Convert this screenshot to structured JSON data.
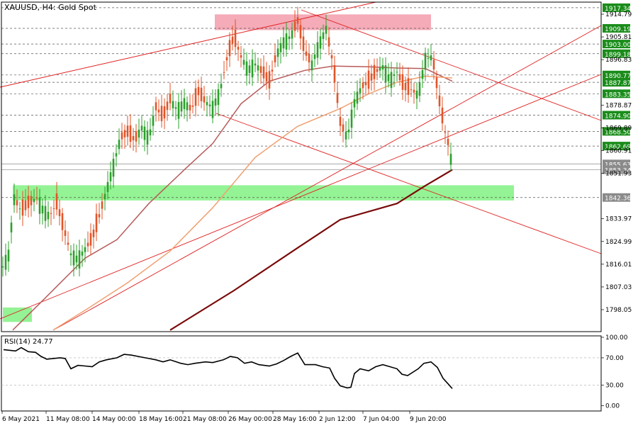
{
  "header": {
    "title": "XAUUSD, H4:  Gold Spot"
  },
  "chart_data": {
    "type": "candlestick",
    "symbol": "XAUUSD",
    "timeframe": "H4",
    "description": "Gold Spot",
    "ylim": [
      1790,
      1920
    ],
    "price_ticks": [
      1914.79,
      1905.81,
      1896.83,
      1878.87,
      1869.89,
      1860.91,
      1851.93,
      1833.97,
      1824.99,
      1816.01,
      1807.03,
      1798.05
    ],
    "level_labels": [
      {
        "price": 1917.34,
        "color": "#1a8c1a"
      },
      {
        "price": 1909.19,
        "color": "#1a8c1a"
      },
      {
        "price": 1903.0,
        "color": "#1a8c1a"
      },
      {
        "price": 1899.18,
        "color": "#1a8c1a"
      },
      {
        "price": 1890.77,
        "color": "#1a8c1a"
      },
      {
        "price": 1887.87,
        "color": "#1a8c1a"
      },
      {
        "price": 1883.35,
        "color": "#1a8c1a"
      },
      {
        "price": 1874.9,
        "color": "#1a8c1a"
      },
      {
        "price": 1868.5,
        "color": "#1a8c1a"
      },
      {
        "price": 1862.69,
        "color": "#1a8c1a"
      },
      {
        "price": 1855.63,
        "color": "#8a8a8a"
      },
      {
        "price": 1853.34,
        "color": "#8a8a8a"
      },
      {
        "price": 1842.36,
        "color": "#8a8a8a"
      }
    ],
    "time_labels": [
      "6 May 2021",
      "11 May 08:00",
      "14 May 00:00",
      "18 May 16:00",
      "21 May 08:00",
      "26 May 00:00",
      "28 May 16:00",
      "2 Jun 12:00",
      "7 Jun 04:00",
      "9 Jun 20:00"
    ],
    "zones": [
      {
        "kind": "resistance",
        "price_from": 1908.5,
        "price_to": 1914.7,
        "color": "#f4a6b4"
      },
      {
        "kind": "support",
        "price_from": 1841.2,
        "price_to": 1847.2,
        "color": "#8ef28e"
      },
      {
        "kind": "support",
        "price_from": 1793.2,
        "price_to": 1798.9,
        "color": "#8ef28e"
      }
    ],
    "series": [
      {
        "name": "MA slow",
        "color": "#7a0a0a",
        "points": [
          [
            240,
            1790.0
          ],
          [
            330,
            1805.6
          ],
          [
            420,
            1822.5
          ],
          [
            480,
            1833.6
          ],
          [
            560,
            1840.0
          ],
          [
            600,
            1847.0
          ],
          [
            638,
            1853.3
          ]
        ]
      },
      {
        "name": "MA medium",
        "color": "#b85a5a",
        "points": [
          [
            18,
            1790.0
          ],
          [
            60,
            1801.6
          ],
          [
            120,
            1818.4
          ],
          [
            165,
            1825.7
          ],
          [
            210,
            1840.0
          ],
          [
            260,
            1853.3
          ],
          [
            300,
            1863.7
          ],
          [
            340,
            1879.4
          ],
          [
            380,
            1888.3
          ],
          [
            430,
            1892.6
          ],
          [
            470,
            1894.3
          ],
          [
            520,
            1894.0
          ],
          [
            560,
            1893.5
          ],
          [
            600,
            1893.3
          ],
          [
            638,
            1888.3
          ]
        ]
      },
      {
        "name": "MA fast",
        "color": "#f0a070",
        "points": [
          [
            75,
            1790.0
          ],
          [
            120,
            1797.8
          ],
          [
            180,
            1808.7
          ],
          [
            240,
            1821.2
          ],
          [
            300,
            1838.3
          ],
          [
            360,
            1858.2
          ],
          [
            420,
            1870.5
          ],
          [
            480,
            1877.5
          ],
          [
            520,
            1883.3
          ],
          [
            560,
            1887.9
          ],
          [
            600,
            1890.3
          ],
          [
            638,
            1889.6
          ]
        ]
      }
    ],
    "rsi": {
      "label": "RSI(14) 24.77",
      "period": 14,
      "value": 24.77,
      "ylim": [
        0,
        100
      ],
      "ticks": [
        100.0,
        70.0,
        30.0,
        0.0
      ],
      "values": [
        [
          5,
          82
        ],
        [
          22,
          80
        ],
        [
          30,
          85
        ],
        [
          40,
          79
        ],
        [
          50,
          78
        ],
        [
          58,
          72
        ],
        [
          66,
          68
        ],
        [
          75,
          69
        ],
        [
          85,
          70
        ],
        [
          92,
          69
        ],
        [
          100,
          54
        ],
        [
          110,
          59
        ],
        [
          120,
          58
        ],
        [
          130,
          57
        ],
        [
          140,
          64
        ],
        [
          150,
          67
        ],
        [
          165,
          70
        ],
        [
          175,
          75
        ],
        [
          185,
          74
        ],
        [
          200,
          71
        ],
        [
          210,
          69
        ],
        [
          220,
          67
        ],
        [
          230,
          64
        ],
        [
          240,
          67
        ],
        [
          255,
          62
        ],
        [
          265,
          60
        ],
        [
          275,
          62
        ],
        [
          290,
          64
        ],
        [
          300,
          63
        ],
        [
          315,
          67
        ],
        [
          325,
          72
        ],
        [
          335,
          70
        ],
        [
          345,
          62
        ],
        [
          355,
          64
        ],
        [
          365,
          60
        ],
        [
          380,
          58
        ],
        [
          390,
          61
        ],
        [
          400,
          66
        ],
        [
          410,
          72
        ],
        [
          420,
          77
        ],
        [
          430,
          60
        ],
        [
          445,
          60
        ],
        [
          455,
          57
        ],
        [
          465,
          55
        ],
        [
          472,
          40
        ],
        [
          480,
          29
        ],
        [
          490,
          26
        ],
        [
          495,
          27
        ],
        [
          500,
          47
        ],
        [
          508,
          54
        ],
        [
          520,
          51
        ],
        [
          530,
          57
        ],
        [
          540,
          60
        ],
        [
          550,
          57
        ],
        [
          560,
          54
        ],
        [
          567,
          46
        ],
        [
          575,
          44
        ],
        [
          590,
          54
        ],
        [
          598,
          62
        ],
        [
          608,
          64
        ],
        [
          617,
          56
        ],
        [
          625,
          40
        ],
        [
          632,
          32
        ],
        [
          638,
          25
        ]
      ]
    }
  }
}
